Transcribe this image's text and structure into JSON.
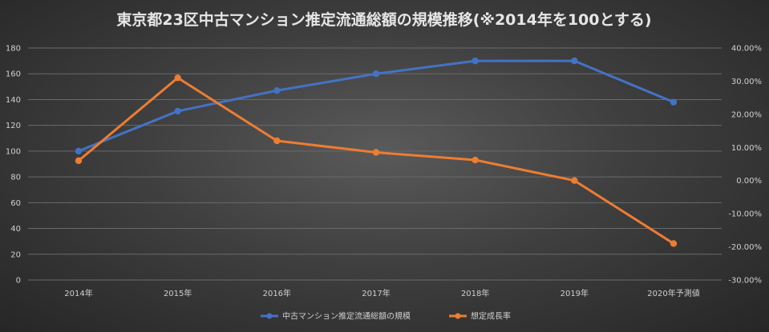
{
  "chart_data": {
    "type": "line",
    "title": "東京都23区中古マンション推定流通総額の規模推移(※2014年を100とする)",
    "categories": [
      "2014年",
      "2015年",
      "2016年",
      "2017年",
      "2018年",
      "2019年",
      "2020年予測値"
    ],
    "y_left": {
      "ylim": [
        0,
        180
      ],
      "ticks": [
        "0",
        "20",
        "40",
        "60",
        "80",
        "100",
        "120",
        "140",
        "160",
        "180"
      ]
    },
    "y_right": {
      "ylim": [
        -30,
        40
      ],
      "ticks": [
        "-30.00%",
        "-20.00%",
        "-10.00%",
        "0.00%",
        "10.00%",
        "20.00%",
        "30.00%",
        "40.00%"
      ]
    },
    "grid": true,
    "legend": "bottom",
    "series": [
      {
        "name": "中古マンション推定流通総額の規模",
        "axis": "left",
        "color": "#4472C4",
        "values": [
          100,
          131,
          147,
          160,
          170,
          170,
          138
        ]
      },
      {
        "name": "想定成長率",
        "axis": "right",
        "color": "#ED7D31",
        "values": [
          6.0,
          31.0,
          12.0,
          8.5,
          6.2,
          0.0,
          -19.0
        ]
      }
    ]
  }
}
